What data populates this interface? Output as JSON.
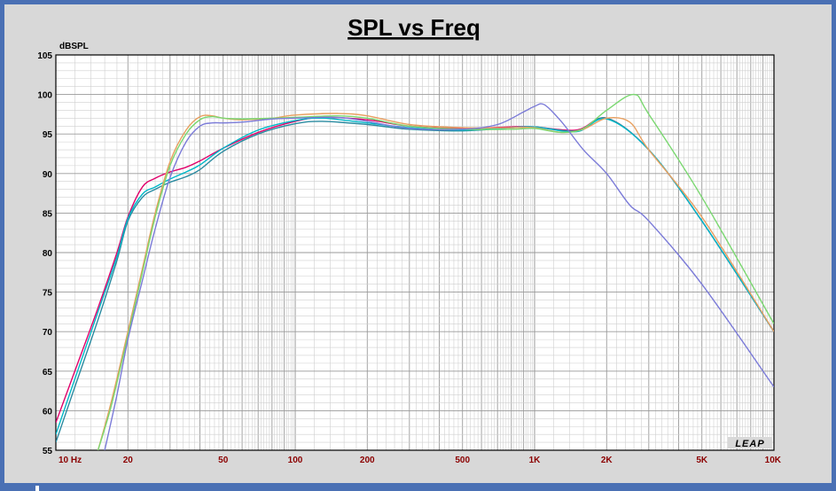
{
  "chart_data": {
    "type": "line",
    "title": "SPL vs Freq",
    "ylabel": "dBSPL",
    "xlabel": "",
    "x_scale": "log",
    "xlim": [
      10,
      10000
    ],
    "ylim": [
      55,
      105
    ],
    "y_ticks": [
      "105",
      "100",
      "95",
      "90",
      "85",
      "80",
      "75",
      "70",
      "65",
      "60",
      "55"
    ],
    "x_ticks": [
      {
        "value": 10,
        "label": "10  Hz"
      },
      {
        "value": 20,
        "label": "20"
      },
      {
        "value": 50,
        "label": "50"
      },
      {
        "value": 100,
        "label": "100"
      },
      {
        "value": 200,
        "label": "200"
      },
      {
        "value": 500,
        "label": "500"
      },
      {
        "value": 1000,
        "label": "1K"
      },
      {
        "value": 2000,
        "label": "2K"
      },
      {
        "value": 5000,
        "label": "5K"
      },
      {
        "value": 10000,
        "label": "10K"
      }
    ],
    "grid": true,
    "logo": "LEAP",
    "series": [
      {
        "color": "#e0006a",
        "x": [
          10,
          12,
          15,
          18,
          20,
          23,
          26,
          30,
          35,
          40,
          50,
          70,
          100,
          130,
          200,
          300,
          500,
          800,
          1000,
          1500,
          2000,
          3000,
          5000,
          10000
        ],
        "y": [
          58.5,
          65,
          73,
          80,
          84.5,
          88.3,
          89.4,
          90.2,
          90.8,
          91.6,
          93.2,
          95.2,
          96.6,
          97.1,
          96.8,
          96.0,
          95.7,
          95.9,
          95.9,
          95.5,
          97.0,
          93,
          84,
          70
        ]
      },
      {
        "color": "#2a8aa0",
        "x": [
          10,
          12,
          15,
          18,
          20,
          23,
          26,
          30,
          35,
          40,
          50,
          70,
          100,
          130,
          200,
          300,
          500,
          800,
          1000,
          1500,
          2000,
          3000,
          5000,
          10000
        ],
        "y": [
          56,
          63,
          71.5,
          79,
          84,
          87,
          88,
          88.9,
          89.6,
          90.5,
          92.8,
          95.0,
          96.3,
          96.6,
          96.2,
          95.6,
          95.4,
          95.8,
          95.9,
          95.4,
          97.0,
          93,
          84,
          70
        ]
      },
      {
        "color": "#00b8c8",
        "x": [
          10,
          12,
          15,
          18,
          20,
          23,
          26,
          30,
          35,
          40,
          50,
          70,
          100,
          130,
          200,
          300,
          500,
          800,
          1000,
          1500,
          2000,
          3000,
          5000,
          10000
        ],
        "y": [
          57,
          64,
          72.5,
          79.5,
          84.3,
          87.4,
          88.3,
          89.3,
          90.2,
          91.1,
          93.2,
          95.5,
          96.7,
          97.0,
          96.4,
          95.8,
          95.5,
          95.8,
          95.9,
          95.3,
          96.9,
          93,
          84,
          70
        ]
      },
      {
        "color": "#e8a060",
        "x": [
          15,
          17,
          20,
          23,
          26,
          30,
          35,
          40,
          45,
          50,
          60,
          80,
          100,
          150,
          200,
          300,
          500,
          800,
          1000,
          1300,
          1600,
          2000,
          2500,
          3000,
          5000,
          10000
        ],
        "y": [
          55,
          61,
          70,
          78,
          85,
          91.5,
          95.5,
          97.2,
          97.3,
          97.0,
          96.8,
          97.0,
          97.4,
          97.6,
          97.3,
          96.2,
          95.8,
          95.8,
          95.8,
          95.2,
          95.6,
          97.0,
          96.5,
          93,
          84.5,
          70
        ]
      },
      {
        "color": "#7ad870",
        "x": [
          15,
          17,
          20,
          23,
          26,
          30,
          35,
          40,
          45,
          50,
          60,
          80,
          100,
          150,
          200,
          300,
          500,
          800,
          1000,
          1300,
          1600,
          2000,
          2600,
          3000,
          5000,
          10000
        ],
        "y": [
          55,
          60.5,
          69.5,
          77.5,
          84.5,
          91,
          95,
          96.8,
          97.2,
          97.0,
          96.9,
          97.0,
          97.1,
          97.3,
          97.0,
          96.0,
          95.6,
          95.6,
          95.7,
          95.2,
          95.7,
          98,
          100,
          97.5,
          87,
          71
        ]
      },
      {
        "color": "#7b7bd8",
        "x": [
          16,
          18,
          20,
          23,
          26,
          30,
          35,
          40,
          45,
          50,
          60,
          80,
          100,
          150,
          200,
          300,
          500,
          700,
          900,
          1000,
          1100,
          1300,
          1600,
          2000,
          2500,
          3000,
          5000,
          10000
        ],
        "y": [
          55,
          62,
          69,
          76.5,
          83,
          89.5,
          94,
          96.0,
          96.4,
          96.4,
          96.5,
          96.9,
          97.0,
          97.1,
          96.6,
          95.7,
          95.6,
          96.2,
          97.8,
          98.5,
          98.7,
          96.5,
          93,
          90,
          86,
          84,
          76,
          63
        ]
      }
    ]
  }
}
